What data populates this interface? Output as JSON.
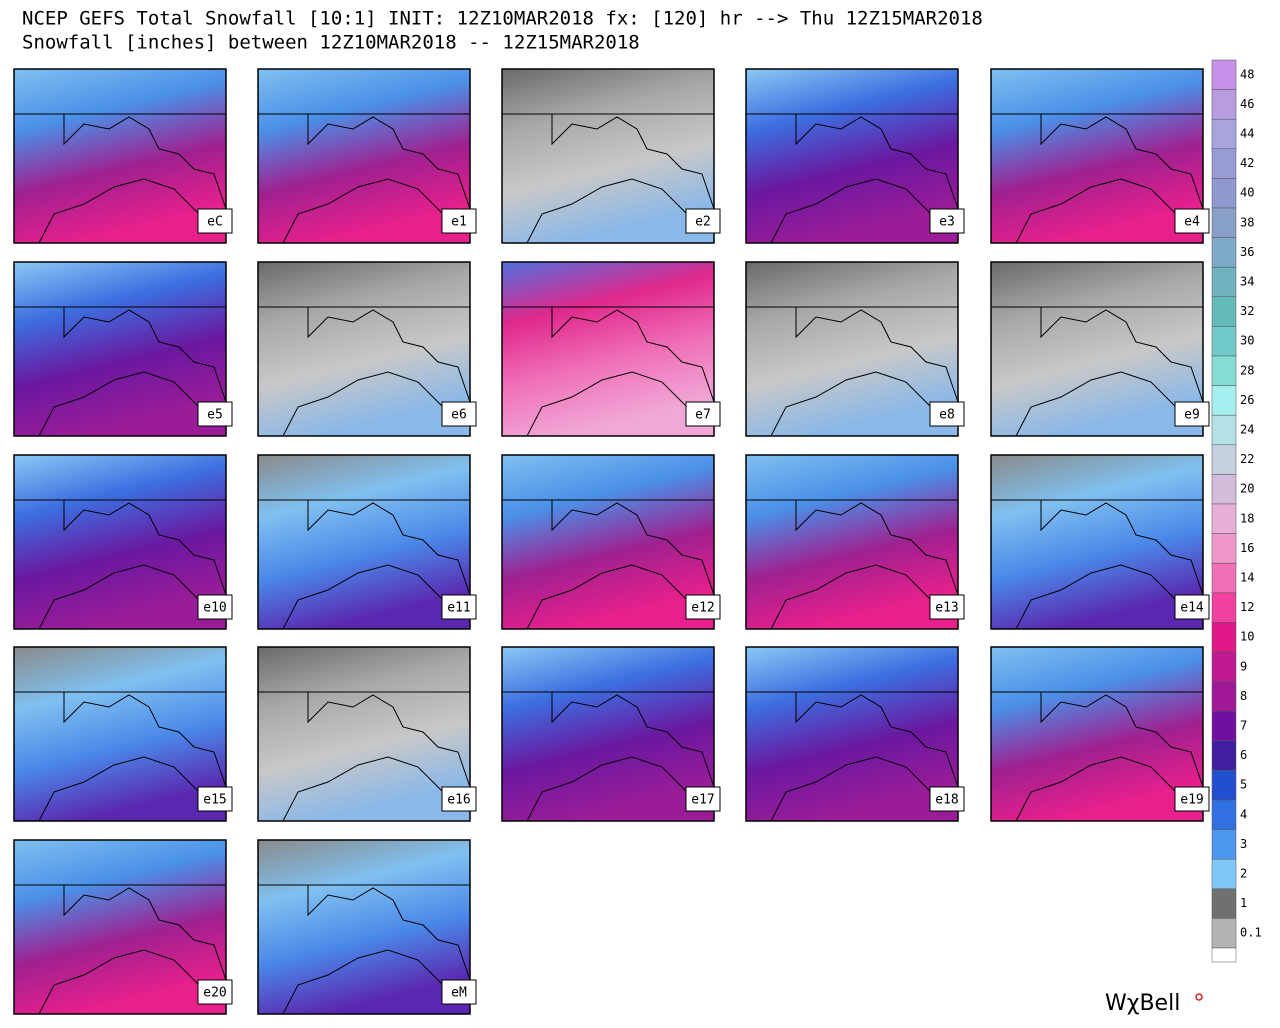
{
  "header": {
    "title": "NCEP GEFS Total Snowfall [10:1] INIT: 12Z10MAR2018 fx: [120] hr --> Thu 12Z15MAR2018",
    "subtitle": "Snowfall [inches] between 12Z10MAR2018 -- 12Z15MAR2018"
  },
  "panels": [
    {
      "label": "eC"
    },
    {
      "label": "e1"
    },
    {
      "label": "e2"
    },
    {
      "label": "e3"
    },
    {
      "label": "e4"
    },
    {
      "label": "e5"
    },
    {
      "label": "e6"
    },
    {
      "label": "e7"
    },
    {
      "label": "e8"
    },
    {
      "label": "e9"
    },
    {
      "label": "e10"
    },
    {
      "label": "e11"
    },
    {
      "label": "e12"
    },
    {
      "label": "e13"
    },
    {
      "label": "e14"
    },
    {
      "label": "e15"
    },
    {
      "label": "e16"
    },
    {
      "label": "e17"
    },
    {
      "label": "e18"
    },
    {
      "label": "e19"
    },
    {
      "label": "e20"
    },
    {
      "label": "eM"
    }
  ],
  "colorbar": [
    {
      "label": 48,
      "color": "#c890e8"
    },
    {
      "label": 46,
      "color": "#b89ce0"
    },
    {
      "label": 44,
      "color": "#a8a4dc"
    },
    {
      "label": 42,
      "color": "#9a9cd8"
    },
    {
      "label": 40,
      "color": "#9098d0"
    },
    {
      "label": 38,
      "color": "#88a0c8"
    },
    {
      "label": 36,
      "color": "#7caac8"
    },
    {
      "label": 34,
      "color": "#70b2c0"
    },
    {
      "label": 32,
      "color": "#64bab8"
    },
    {
      "label": 30,
      "color": "#70c8c8"
    },
    {
      "label": 28,
      "color": "#84dcd4"
    },
    {
      "label": 26,
      "color": "#a4f0f0"
    },
    {
      "label": 24,
      "color": "#b4e0e8"
    },
    {
      "label": 22,
      "color": "#c4d0e0"
    },
    {
      "label": 20,
      "color": "#d4bcdc"
    },
    {
      "label": 18,
      "color": "#e8b0d8"
    },
    {
      "label": 16,
      "color": "#f098cc"
    },
    {
      "label": 14,
      "color": "#f070b8"
    },
    {
      "label": 12,
      "color": "#f040a0"
    },
    {
      "label": 10,
      "color": "#e01888"
    },
    {
      "label": 9,
      "color": "#c01890"
    },
    {
      "label": 8,
      "color": "#a01898"
    },
    {
      "label": 7,
      "color": "#7010a0"
    },
    {
      "label": 6,
      "color": "#4020a0"
    },
    {
      "label": 5,
      "color": "#2050d0"
    },
    {
      "label": 4,
      "color": "#3070e0"
    },
    {
      "label": 3,
      "color": "#4c98f0"
    },
    {
      "label": 2,
      "color": "#80c8f8"
    },
    {
      "label": 1,
      "color": "#707070"
    },
    {
      "label": 0.1,
      "color": "#b4b4b4"
    }
  ],
  "brand": "WχBell"
}
